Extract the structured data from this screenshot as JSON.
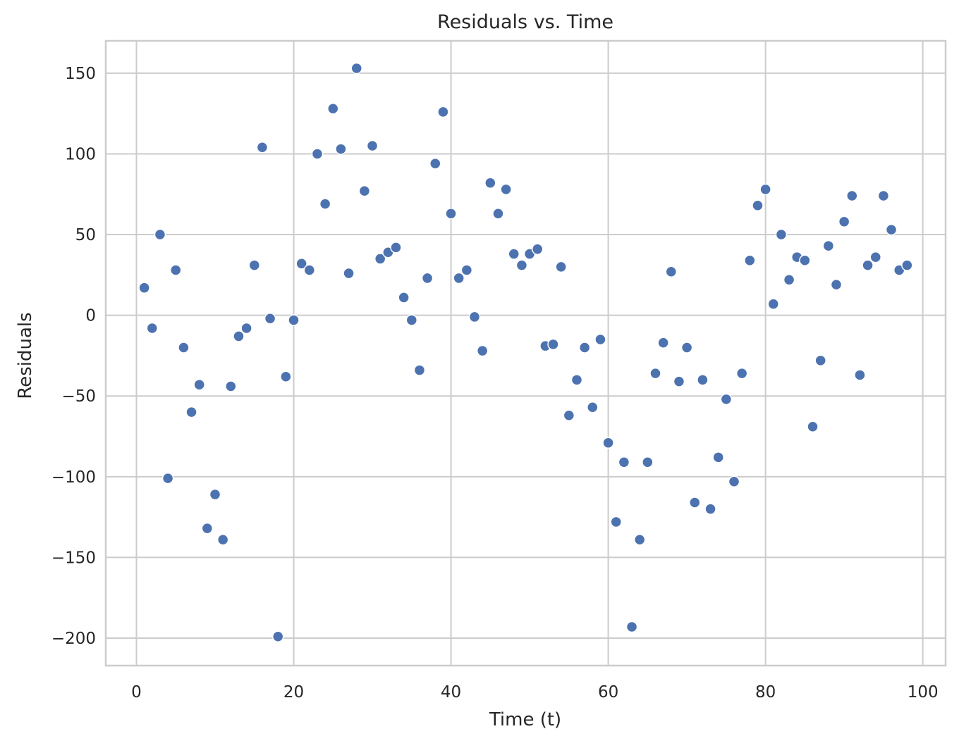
{
  "chart_data": {
    "type": "scatter",
    "title": "Residuals vs. Time",
    "xlabel": "Time (t)",
    "ylabel": "Residuals",
    "xlim": [
      -3.9,
      102.9
    ],
    "ylim": [
      -217,
      170
    ],
    "xticks": [
      0,
      20,
      40,
      60,
      80,
      100
    ],
    "yticks": [
      150,
      100,
      50,
      0,
      -50,
      -100,
      -150,
      -200
    ],
    "xtick_labels": [
      "0",
      "20",
      "40",
      "60",
      "80",
      "100"
    ],
    "ytick_labels": [
      "150",
      "100",
      "50",
      "0",
      "−50",
      "−100",
      "−150",
      "−200"
    ],
    "grid": true,
    "color": "#4c72b0",
    "series": [
      {
        "x": [
          1,
          2,
          3,
          4,
          5,
          6,
          7,
          8,
          9,
          10,
          11,
          12,
          13,
          14,
          15,
          16,
          17,
          18,
          19,
          20,
          21,
          22,
          23,
          24,
          25,
          26,
          27,
          28,
          29,
          30,
          31,
          32,
          33,
          34,
          35,
          36,
          37,
          38,
          39,
          40,
          41,
          42,
          43,
          44,
          45,
          46,
          47,
          48,
          49,
          50,
          51,
          52,
          53,
          54,
          55,
          56,
          57,
          58,
          59,
          60,
          61,
          62,
          63,
          64,
          65,
          66,
          67,
          68,
          69,
          70,
          71,
          72,
          73,
          74,
          75,
          76,
          77,
          78,
          79,
          80,
          81,
          82,
          83,
          84,
          85,
          86,
          87,
          88,
          89,
          90,
          91,
          92,
          93,
          94,
          95,
          96,
          97,
          98
        ],
        "y": [
          17,
          -8,
          50,
          -101,
          28,
          -20,
          -60,
          -43,
          -132,
          -111,
          -139,
          -44,
          -13,
          -8,
          31,
          104,
          -2,
          -199,
          -38,
          -3,
          32,
          28,
          100,
          69,
          128,
          103,
          26,
          153,
          77,
          105,
          35,
          39,
          42,
          11,
          -3,
          -34,
          23,
          94,
          126,
          63,
          23,
          28,
          -1,
          -22,
          82,
          63,
          78,
          38,
          31,
          38,
          41,
          -19,
          -18,
          30,
          -62,
          -40,
          -20,
          -57,
          -15,
          -79,
          -128,
          -91,
          -193,
          -139,
          -91,
          -36,
          -17,
          27,
          -41,
          -20,
          -116,
          -40,
          -120,
          -88,
          -52,
          -103,
          -36,
          34,
          68,
          78,
          7,
          50,
          22,
          36,
          34,
          -69,
          -28,
          43,
          19,
          58,
          74,
          -37,
          31,
          36,
          74,
          53,
          28,
          31
        ]
      }
    ]
  }
}
